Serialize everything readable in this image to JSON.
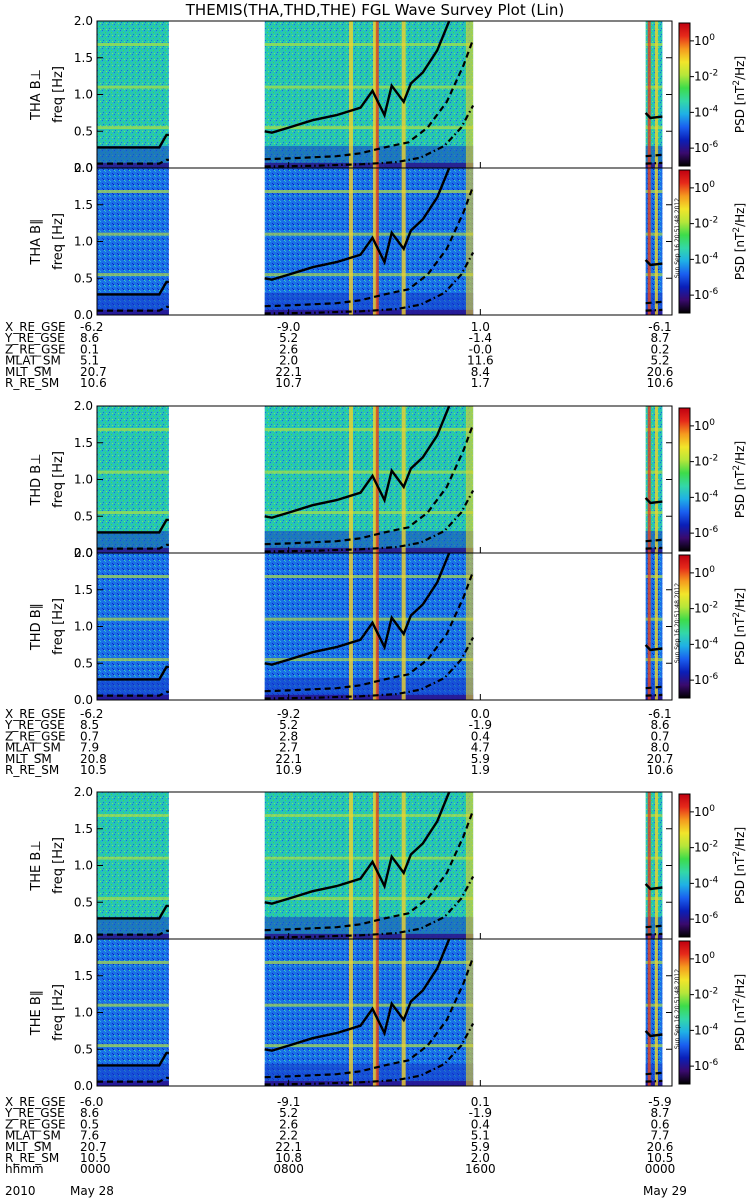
{
  "title": "THEMIS(THA,THD,THE) FGL Wave Survey Plot (Lin)",
  "colorbar": {
    "label_main": "PSD [nT",
    "label_sup": "2",
    "label_end": "/Hz]",
    "ticks": [
      {
        "base": "10",
        "exp": "0",
        "value": 1
      },
      {
        "base": "10",
        "exp": "-2",
        "value": 0.01
      },
      {
        "base": "10",
        "exp": "-4",
        "value": 0.0001
      },
      {
        "base": "10",
        "exp": "-6",
        "value": 1e-06
      }
    ],
    "colors": [
      "#000000",
      "#3a0a6e",
      "#0a1fb8",
      "#1a5ff0",
      "#1fb0e6",
      "#33d8a8",
      "#3ddc4a",
      "#b6e63a",
      "#f2e52a",
      "#f59a1e",
      "#e62a1a",
      "#c00010"
    ]
  },
  "stamp_text": "Sun Sep 16 20:51:48 2012",
  "chart_data": {
    "type": "heatmap",
    "x_unit": "UT hhmm",
    "x_range": [
      "2010-05-28 00:00",
      "2010-05-29 00:00"
    ],
    "x_ticks": [
      "0000",
      "0800",
      "1600",
      "0000"
    ],
    "date_row": {
      "left": "2010",
      "left2": "May 28",
      "right": "May 29"
    },
    "y_range": [
      0,
      2.0
    ],
    "y_ticks": [
      "0.0",
      "0.5",
      "1.0",
      "1.5",
      "2.0"
    ],
    "ylabel_units": "freq [Hz]",
    "data_intervals_hours": [
      [
        0,
        3.0
      ],
      [
        7.0,
        15.7
      ],
      [
        22.9,
        23.6
      ]
    ],
    "panels": [
      {
        "probe": "THA",
        "component": "B⊥",
        "ylabel": "THA B⊥"
      },
      {
        "probe": "THA",
        "component": "B∥",
        "ylabel": "THA B∥"
      },
      {
        "probe": "THD",
        "component": "B⊥",
        "ylabel": "THD B⊥"
      },
      {
        "probe": "THD",
        "component": "B∥",
        "ylabel": "THD B∥"
      },
      {
        "probe": "THE",
        "component": "B⊥",
        "ylabel": "THE B⊥"
      },
      {
        "probe": "THE",
        "component": "B∥",
        "ylabel": "THE B∥"
      }
    ],
    "series": [
      {
        "style": "solid",
        "points": [
          [
            0,
            0.28
          ],
          [
            2.6,
            0.28
          ],
          [
            2.9,
            0.45
          ],
          [
            3.0,
            0.45
          ],
          [
            7.0,
            0.5
          ],
          [
            7.3,
            0.48
          ],
          [
            8.0,
            0.55
          ],
          [
            9.0,
            0.65
          ],
          [
            10.0,
            0.72
          ],
          [
            11.0,
            0.82
          ],
          [
            11.5,
            1.05
          ],
          [
            12.0,
            0.72
          ],
          [
            12.3,
            1.12
          ],
          [
            12.8,
            0.9
          ],
          [
            13.1,
            1.15
          ],
          [
            13.6,
            1.3
          ],
          [
            14.2,
            1.6
          ],
          [
            14.7,
            2.0
          ],
          [
            22.9,
            0.75
          ],
          [
            23.1,
            0.68
          ],
          [
            23.6,
            0.7
          ]
        ]
      },
      {
        "style": "dashed",
        "points": [
          [
            0,
            0.06
          ],
          [
            2.6,
            0.06
          ],
          [
            2.9,
            0.11
          ],
          [
            3.0,
            0.11
          ],
          [
            7.0,
            0.12
          ],
          [
            8.0,
            0.13
          ],
          [
            10.0,
            0.16
          ],
          [
            11.0,
            0.2
          ],
          [
            12.0,
            0.28
          ],
          [
            13.0,
            0.35
          ],
          [
            13.8,
            0.55
          ],
          [
            14.6,
            0.9
          ],
          [
            15.3,
            1.4
          ],
          [
            15.7,
            1.75
          ],
          [
            22.9,
            0.16
          ],
          [
            23.6,
            0.18
          ]
        ]
      },
      {
        "style": "dashdot",
        "points": [
          [
            7.0,
            0.02
          ],
          [
            9.0,
            0.03
          ],
          [
            11.0,
            0.05
          ],
          [
            12.5,
            0.08
          ],
          [
            13.5,
            0.14
          ],
          [
            14.5,
            0.3
          ],
          [
            15.2,
            0.55
          ],
          [
            15.7,
            0.85
          ],
          [
            22.9,
            0.06
          ],
          [
            23.6,
            0.07
          ]
        ]
      }
    ]
  },
  "ephemeris": [
    {
      "probe": "THA",
      "rows": [
        {
          "label": "X_RE_GSE",
          "values": [
            "-6.2",
            "-9.0",
            "1.0",
            "-6.1"
          ]
        },
        {
          "label": "Y_RE_GSE",
          "values": [
            "8.6",
            "5.2",
            "-1.4",
            "8.7"
          ]
        },
        {
          "label": "Z_RE_GSE",
          "values": [
            "0.1",
            "2.6",
            "-0.0",
            "0.2"
          ]
        },
        {
          "label": "MLAT_SM",
          "values": [
            "5.1",
            "2.0",
            "11.6",
            "5.2"
          ]
        },
        {
          "label": "MLT_SM",
          "values": [
            "20.7",
            "22.1",
            "8.4",
            "20.6"
          ]
        },
        {
          "label": "R_RE_SM",
          "values": [
            "10.6",
            "10.7",
            "1.7",
            "10.6"
          ]
        }
      ]
    },
    {
      "probe": "THD",
      "rows": [
        {
          "label": "X_RE_GSE",
          "values": [
            "-6.2",
            "-9.2",
            "0.0",
            "-6.1"
          ]
        },
        {
          "label": "Y_RE_GSE",
          "values": [
            "8.5",
            "5.2",
            "-1.9",
            "8.6"
          ]
        },
        {
          "label": "Z_RE_GSE",
          "values": [
            "0.7",
            "2.8",
            "0.4",
            "0.7"
          ]
        },
        {
          "label": "MLAT_SM",
          "values": [
            "7.9",
            "2.7",
            "4.7",
            "8.0"
          ]
        },
        {
          "label": "MLT_SM",
          "values": [
            "20.8",
            "22.1",
            "5.9",
            "20.7"
          ]
        },
        {
          "label": "R_RE_SM",
          "values": [
            "10.5",
            "10.9",
            "1.9",
            "10.6"
          ]
        }
      ]
    },
    {
      "probe": "THE",
      "rows": [
        {
          "label": "X_RE_GSE",
          "values": [
            "-6.0",
            "-9.1",
            "0.1",
            "-5.9"
          ]
        },
        {
          "label": "Y_RE_GSE",
          "values": [
            "8.6",
            "5.2",
            "-1.9",
            "8.7"
          ]
        },
        {
          "label": "Z_RE_GSE",
          "values": [
            "0.5",
            "2.6",
            "0.4",
            "0.6"
          ]
        },
        {
          "label": "MLAT_SM",
          "values": [
            "7.6",
            "2.2",
            "5.1",
            "7.7"
          ]
        },
        {
          "label": "MLT_SM",
          "values": [
            "20.7",
            "22.1",
            "5.9",
            "20.6"
          ]
        },
        {
          "label": "R_RE_SM",
          "values": [
            "10.5",
            "10.8",
            "2.0",
            "10.5"
          ]
        },
        {
          "label": "hhmm",
          "values": [
            "0000",
            "0800",
            "1600",
            "0000"
          ]
        }
      ]
    }
  ]
}
